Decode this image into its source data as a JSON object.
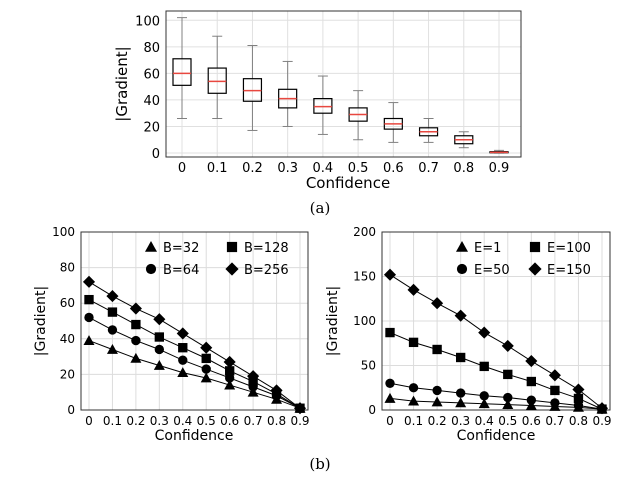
{
  "figure": {
    "caption_a": "(a)",
    "caption_b": "(b)"
  },
  "chart_data": [
    {
      "id": "a",
      "type": "box",
      "xlabel": "Confidence",
      "ylabel": "|Gradient|",
      "categories": [
        "0",
        "0.1",
        "0.2",
        "0.3",
        "0.4",
        "0.5",
        "0.6",
        "0.7",
        "0.8",
        "0.9"
      ],
      "ylim": [
        -3,
        107
      ],
      "yticks": [
        0,
        20,
        40,
        60,
        80,
        100
      ],
      "grid": true,
      "boxes": [
        {
          "min": 26,
          "q1": 51,
          "median": 60,
          "q3": 71,
          "max": 102
        },
        {
          "min": 26,
          "q1": 45,
          "median": 54,
          "q3": 64,
          "max": 88
        },
        {
          "min": 17,
          "q1": 39,
          "median": 47,
          "q3": 56,
          "max": 81
        },
        {
          "min": 20,
          "q1": 34,
          "median": 41,
          "q3": 48,
          "max": 69
        },
        {
          "min": 14,
          "q1": 30,
          "median": 35,
          "q3": 41,
          "max": 58
        },
        {
          "min": 10,
          "q1": 24,
          "median": 29,
          "q3": 34,
          "max": 47
        },
        {
          "min": 8,
          "q1": 18,
          "median": 22,
          "q3": 26,
          "max": 38
        },
        {
          "min": 8,
          "q1": 13,
          "median": 16,
          "q3": 19,
          "max": 26
        },
        {
          "min": 4,
          "q1": 7,
          "median": 10,
          "q3": 13,
          "max": 16
        },
        {
          "min": 0,
          "q1": 0.2,
          "median": 0.5,
          "q3": 1,
          "max": 2
        }
      ],
      "colors": {
        "box": "#000000",
        "median": "#e8473f",
        "whisker": "#808080",
        "grid": "#e0e0e0"
      }
    },
    {
      "id": "b-left",
      "type": "line",
      "xlabel": "Confidence",
      "ylabel": "|Gradient|",
      "x": [
        0,
        0.1,
        0.2,
        0.3,
        0.4,
        0.5,
        0.6,
        0.7,
        0.8,
        0.9
      ],
      "xticklabels": [
        "0",
        "0.1",
        "0.2",
        "0.3",
        "0.4",
        "0.5",
        "0.6",
        "0.7",
        "0.8",
        "0.9"
      ],
      "ylim": [
        0,
        100
      ],
      "yticks": [
        0,
        20,
        40,
        60,
        80,
        100
      ],
      "grid": true,
      "legend_position": "top-right",
      "legend_columns": 2,
      "series": [
        {
          "name": "B=32",
          "marker": "triangle",
          "values": [
            39,
            34,
            29,
            25,
            21,
            18,
            14,
            10,
            6,
            1
          ]
        },
        {
          "name": "B=64",
          "marker": "circle",
          "values": [
            52,
            45,
            39,
            34,
            28,
            23,
            18,
            13,
            8,
            1
          ]
        },
        {
          "name": "B=128",
          "marker": "square",
          "values": [
            62,
            55,
            48,
            41,
            35,
            29,
            22,
            16,
            9,
            1
          ]
        },
        {
          "name": "B=256",
          "marker": "diamond",
          "values": [
            72,
            64,
            57,
            51,
            43,
            35,
            27,
            19,
            11,
            1
          ]
        }
      ]
    },
    {
      "id": "b-right",
      "type": "line",
      "xlabel": "Confidence",
      "ylabel": "|Gradient|",
      "x": [
        0,
        0.1,
        0.2,
        0.3,
        0.4,
        0.5,
        0.6,
        0.7,
        0.8,
        0.9
      ],
      "xticklabels": [
        "0",
        "0.1",
        "0.2",
        "0.3",
        "0.4",
        "0.5",
        "0.6",
        "0.7",
        "0.8",
        "0.9"
      ],
      "ylim": [
        0,
        200
      ],
      "yticks": [
        0,
        50,
        100,
        150,
        200
      ],
      "grid": true,
      "legend_position": "top-right",
      "legend_columns": 2,
      "series": [
        {
          "name": "E=1",
          "marker": "triangle",
          "values": [
            13,
            10,
            9,
            8,
            7,
            6,
            5,
            4,
            3,
            1
          ]
        },
        {
          "name": "E=50",
          "marker": "circle",
          "values": [
            30,
            25,
            22,
            19,
            16,
            14,
            11,
            8,
            5,
            1
          ]
        },
        {
          "name": "E=100",
          "marker": "square",
          "values": [
            87,
            76,
            68,
            59,
            49,
            40,
            32,
            22,
            13,
            1
          ]
        },
        {
          "name": "E=150",
          "marker": "diamond",
          "values": [
            152,
            135,
            120,
            106,
            87,
            72,
            55,
            39,
            23,
            2
          ]
        }
      ]
    }
  ]
}
